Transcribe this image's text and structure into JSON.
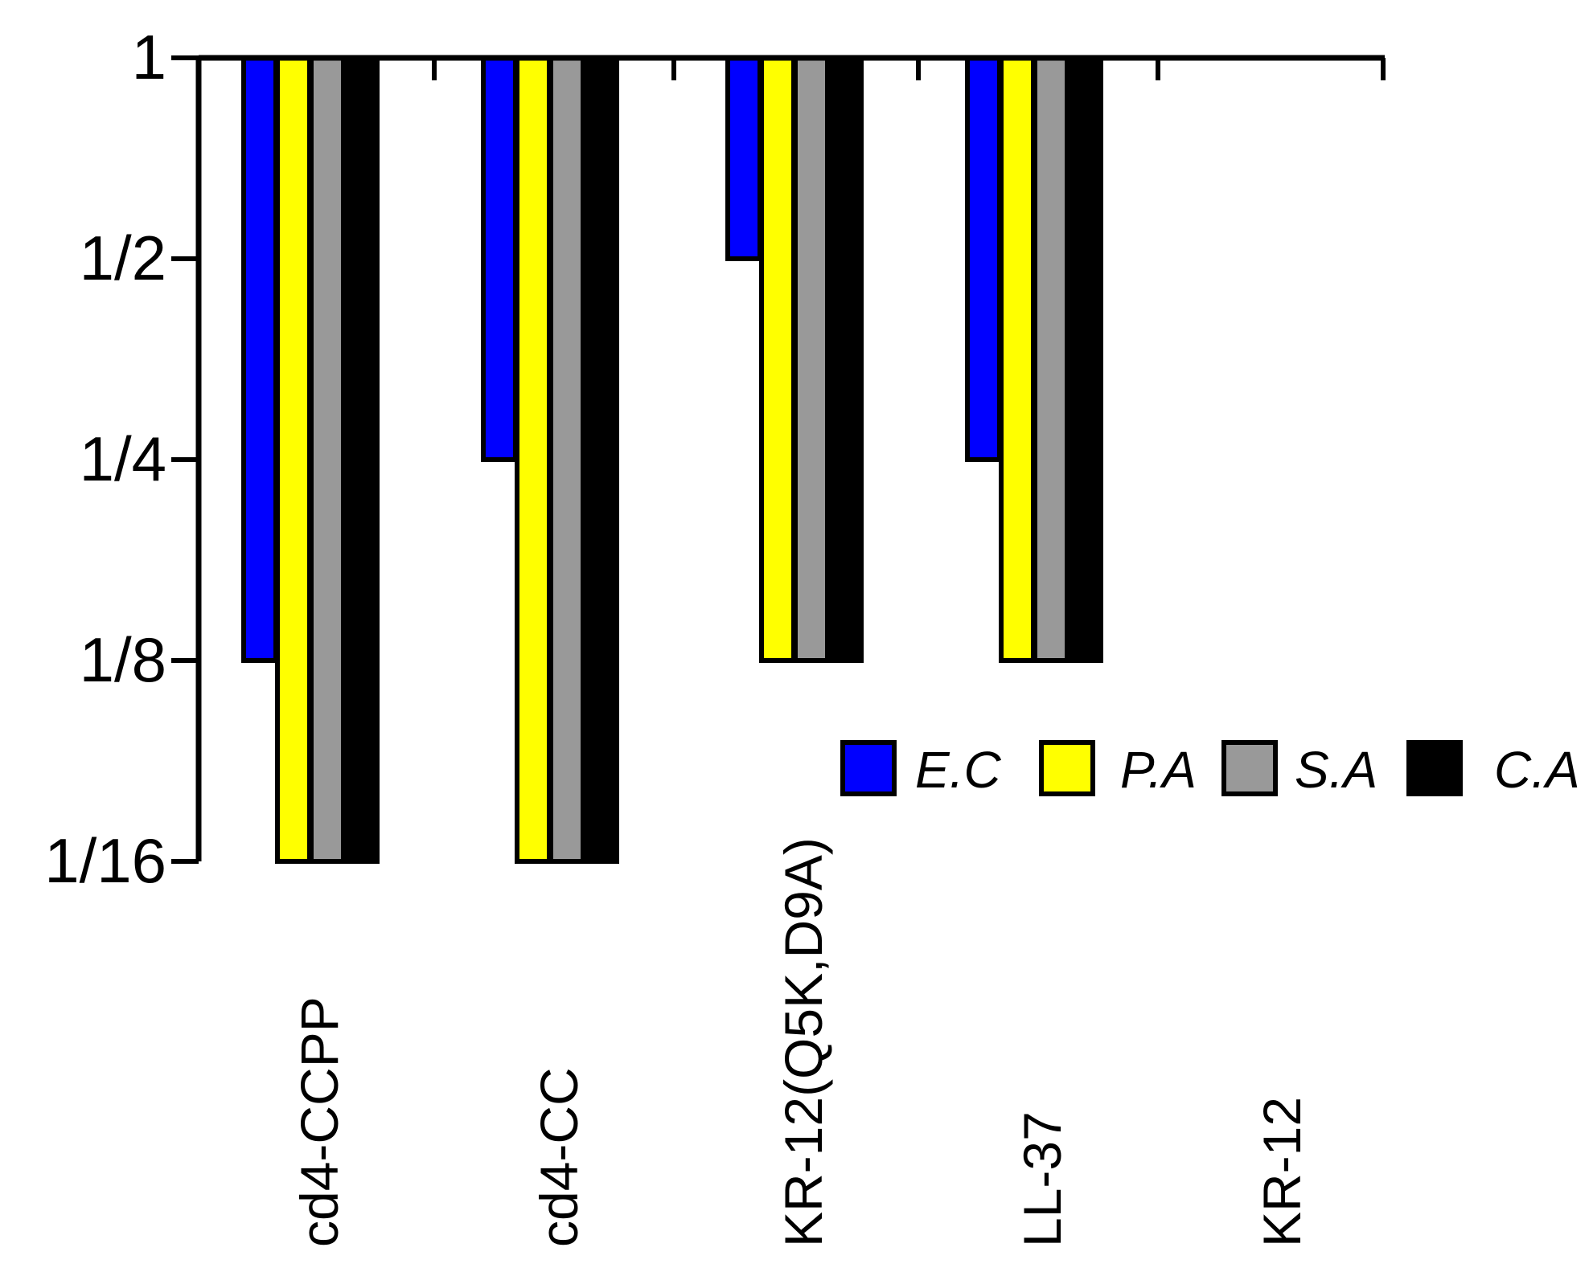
{
  "chart_data": {
    "type": "bar",
    "title": "",
    "xlabel": "",
    "ylabel": "",
    "y_scale": "log2",
    "y_axis_direction": "descending",
    "ylim": [
      0.0625,
      1
    ],
    "y_ticks": [
      {
        "value": 1,
        "label": "1"
      },
      {
        "value": 0.5,
        "label": "1/2"
      },
      {
        "value": 0.25,
        "label": "1/4"
      },
      {
        "value": 0.125,
        "label": "1/8"
      },
      {
        "value": 0.0625,
        "label": "1/16"
      }
    ],
    "categories": [
      "cd4-CCPP",
      "cd4-CC",
      "KR-12(Q5K,D9A)",
      "LL-37",
      "KR-12"
    ],
    "series": [
      {
        "name": "E.C",
        "color": "#0000ff",
        "values": [
          0.125,
          0.25,
          0.5,
          0.25,
          null
        ]
      },
      {
        "name": "P.A",
        "color": "#ffff00",
        "values": [
          0.0625,
          0.0625,
          0.125,
          0.125,
          null
        ]
      },
      {
        "name": "S.A",
        "color": "#999999",
        "values": [
          0.0625,
          0.0625,
          0.125,
          0.125,
          null
        ]
      },
      {
        "name": "C.A",
        "color": "#000000",
        "values": [
          0.0625,
          0.0625,
          0.125,
          0.125,
          null
        ]
      }
    ],
    "grid": false,
    "legend_position": "right"
  }
}
